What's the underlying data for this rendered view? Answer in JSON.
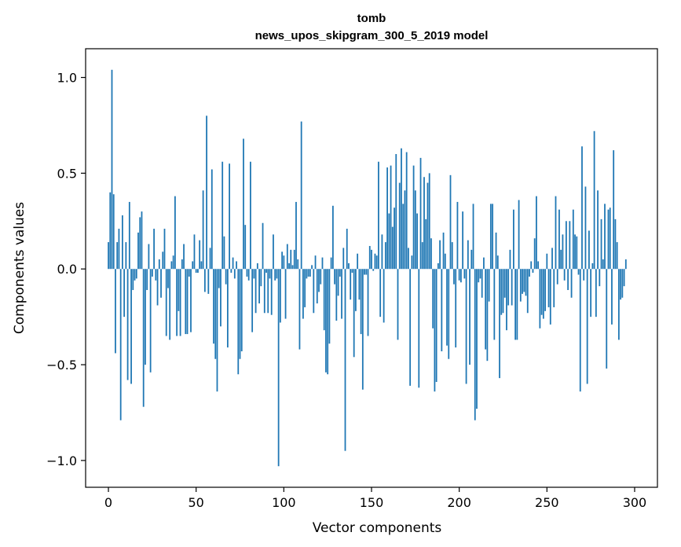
{
  "chart_data": {
    "type": "bar",
    "title": "tomb",
    "subtitle": "news_upos_skipgram_300_5_2019 model",
    "xlabel": "Vector components",
    "ylabel": "Components values",
    "xlim": [
      -13,
      313
    ],
    "ylim": [
      -1.14,
      1.15
    ],
    "xticks": [
      0,
      50,
      100,
      150,
      200,
      250,
      300
    ],
    "xtick_labels": [
      "0",
      "50",
      "100",
      "150",
      "200",
      "250",
      "300"
    ],
    "yticks": [
      -1.0,
      -0.5,
      0.0,
      0.5,
      1.0
    ],
    "ytick_labels": [
      "−1.0",
      "−0.5",
      "0.0",
      "0.5",
      "1.0"
    ],
    "bar_color": "#1f77b4",
    "grid": false,
    "values": [
      0.14,
      0.4,
      1.04,
      0.39,
      -0.44,
      0.14,
      0.21,
      -0.79,
      0.28,
      -0.25,
      0.14,
      -0.58,
      0.35,
      -0.6,
      -0.11,
      -0.06,
      -0.05,
      0.19,
      0.27,
      0.3,
      -0.72,
      -0.5,
      -0.11,
      0.13,
      -0.54,
      -0.04,
      0.21,
      -0.06,
      -0.19,
      0.05,
      -0.15,
      0.09,
      0.21,
      -0.35,
      -0.1,
      -0.37,
      0.04,
      0.07,
      0.38,
      -0.35,
      -0.22,
      -0.35,
      0.05,
      0.13,
      -0.34,
      -0.34,
      -0.04,
      -0.33,
      0.04,
      0.18,
      -0.02,
      -0.02,
      0.15,
      0.04,
      0.41,
      -0.12,
      0.8,
      -0.13,
      0.11,
      0.52,
      -0.39,
      -0.47,
      -0.64,
      -0.1,
      -0.3,
      0.56,
      0.17,
      -0.08,
      -0.41,
      0.55,
      -0.02,
      0.06,
      -0.05,
      0.04,
      -0.55,
      -0.47,
      -0.43,
      0.68,
      0.23,
      -0.04,
      -0.06,
      0.56,
      -0.33,
      -0.05,
      -0.23,
      0.03,
      -0.18,
      -0.09,
      0.24,
      -0.23,
      -0.02,
      -0.23,
      -0.05,
      -0.24,
      0.18,
      -0.06,
      -0.05,
      -1.03,
      -0.28,
      0.09,
      0.07,
      -0.26,
      0.13,
      0.03,
      0.1,
      0.02,
      0.1,
      0.35,
      0.05,
      -0.42,
      0.77,
      -0.26,
      -0.2,
      -0.05,
      -0.04,
      -0.04,
      0.02,
      -0.23,
      0.07,
      -0.18,
      -0.12,
      -0.08,
      0.06,
      -0.32,
      -0.54,
      -0.55,
      -0.39,
      0.06,
      0.33,
      -0.08,
      -0.27,
      -0.14,
      -0.04,
      -0.26,
      0.11,
      -0.95,
      0.21,
      0.03,
      -0.16,
      -0.02,
      -0.46,
      -0.22,
      0.08,
      -0.16,
      -0.34,
      -0.63,
      -0.03,
      -0.03,
      -0.35,
      0.12,
      0.1,
      -0.01,
      0.08,
      0.07,
      0.56,
      -0.25,
      0.18,
      -0.28,
      0.14,
      0.53,
      0.29,
      0.54,
      0.22,
      0.32,
      0.6,
      -0.37,
      0.45,
      0.63,
      0.34,
      0.41,
      0.61,
      0.11,
      -0.61,
      0.07,
      0.54,
      0.41,
      0.29,
      -0.62,
      0.58,
      0.14,
      0.48,
      0.26,
      0.45,
      0.5,
      0.16,
      -0.31,
      -0.64,
      -0.59,
      0.03,
      0.15,
      -0.43,
      0.19,
      0.08,
      -0.4,
      -0.47,
      0.49,
      0.14,
      -0.08,
      -0.41,
      0.35,
      -0.06,
      -0.07,
      0.3,
      -0.05,
      -0.6,
      0.15,
      -0.5,
      0.1,
      0.34,
      -0.79,
      -0.73,
      -0.07,
      -0.05,
      -0.15,
      0.06,
      -0.42,
      -0.48,
      -0.17,
      0.34,
      0.34,
      -0.37,
      0.19,
      0.07,
      -0.57,
      -0.24,
      -0.23,
      -0.15,
      -0.32,
      -0.19,
      0.1,
      -0.19,
      0.31,
      -0.37,
      -0.37,
      0.36,
      -0.17,
      -0.13,
      -0.12,
      -0.14,
      -0.23,
      -0.04,
      0.04,
      -0.02,
      0.16,
      0.38,
      0.04,
      -0.31,
      -0.24,
      -0.26,
      -0.22,
      0.08,
      -0.2,
      -0.29,
      0.11,
      -0.2,
      0.38,
      -0.08,
      0.31,
      0.1,
      0.18,
      -0.06,
      0.25,
      -0.11,
      0.25,
      -0.15,
      0.31,
      0.18,
      0.17,
      -0.03,
      -0.64,
      0.64,
      -0.06,
      0.43,
      -0.6,
      0.2,
      -0.25,
      0.03,
      0.72,
      -0.25,
      0.41,
      -0.09,
      0.26,
      0.05,
      0.34,
      -0.52,
      0.31,
      0.32,
      -0.29,
      0.62,
      0.26,
      0.14,
      -0.37,
      -0.16,
      -0.15,
      -0.09,
      0.05
    ]
  }
}
